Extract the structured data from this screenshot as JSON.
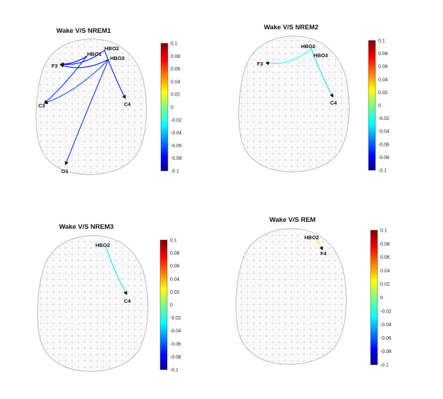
{
  "panels": [
    {
      "id": "nrem1",
      "title": "Wake V/S NREM1",
      "nodes": {
        "HBO2": "HBO2",
        "HBO1": "HBO1",
        "HBO3": "HBO3",
        "F3": "F3",
        "C3": "C3",
        "C4": "C4",
        "O1": "O1"
      },
      "connections": [
        {
          "from": "HBO2",
          "to": "F3",
          "value": -0.07
        },
        {
          "from": "HBO1",
          "to": "F3",
          "value": -0.08
        },
        {
          "from": "HBO3",
          "to": "F3",
          "value": -0.075
        },
        {
          "from": "HBO1",
          "to": "C3",
          "value": -0.065
        },
        {
          "from": "HBO3",
          "to": "C3",
          "value": -0.06
        },
        {
          "from": "HBO2",
          "to": "C4",
          "value": -0.07
        },
        {
          "from": "HBO3",
          "to": "O1",
          "value": -0.065
        }
      ],
      "colorbar": {
        "ticks": [
          "0.1",
          "0.08",
          "0.06",
          "0.04",
          "0.02",
          "0",
          "-0.02",
          "-0.04",
          "-0.06",
          "-0.08",
          "-0.1"
        ]
      }
    },
    {
      "id": "nrem2",
      "title": "Wake V/S NREM2",
      "nodes": {
        "HBO2": "HBO2",
        "HBO3": "HBO3",
        "F3": "F3",
        "C4": "C4"
      },
      "connections": [
        {
          "from": "HBO2",
          "to": "F3",
          "value": -0.025
        },
        {
          "from": "HBO2",
          "to": "C4",
          "value": -0.03
        }
      ],
      "colorbar": {
        "ticks": [
          "0.1",
          "0.08",
          "0.06",
          "0.04",
          "0.02",
          "0",
          "-0.02",
          "-0.04",
          "-0.06",
          "-0.08",
          "-0.1"
        ]
      }
    },
    {
      "id": "nrem3",
      "title": "Wake V/S NREM3",
      "nodes": {
        "HBO2": "HBO2",
        "C4": "C4"
      },
      "connections": [
        {
          "from": "HBO2",
          "to": "C4",
          "value": -0.03
        }
      ],
      "colorbar": {
        "ticks": [
          "0.1",
          "0.08",
          "0.06",
          "0.04",
          "0.02",
          "0",
          "-0.02",
          "-0.04",
          "-0.06",
          "-0.08",
          "-0.1"
        ]
      }
    },
    {
      "id": "rem",
      "title": "Wake V/S REM",
      "nodes": {
        "HBO2": "HBO2",
        "F4": "F4"
      },
      "connections": [
        {
          "from": "HBO2",
          "to": "F4",
          "value": 0.03
        }
      ],
      "colorbar": {
        "ticks": [
          "0.1",
          "0.08",
          "0.06",
          "0.04",
          "0.02",
          "0",
          "-0.02",
          "-0.04",
          "-0.06",
          "-0.08",
          "-0.1"
        ]
      }
    }
  ],
  "colors": {
    "mesh_line": "#c9c9c9",
    "colormap": [
      "#00008f",
      "#0000ff",
      "#0080ff",
      "#00ffff",
      "#80ff80",
      "#ffff00",
      "#ff8000",
      "#ff0000",
      "#800000"
    ]
  }
}
